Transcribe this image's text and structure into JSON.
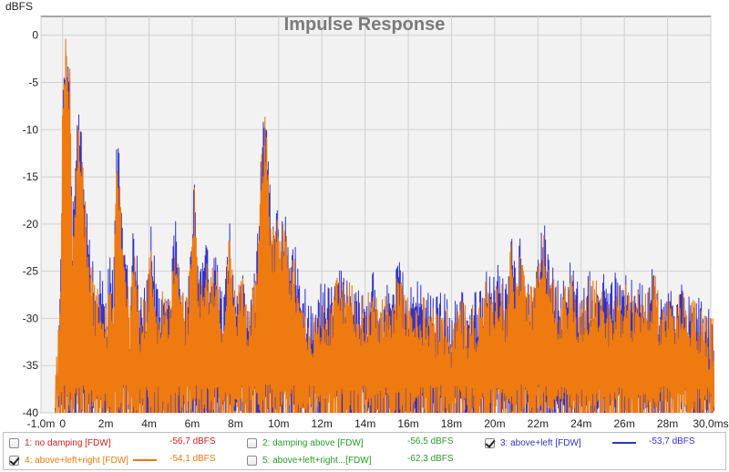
{
  "chart_data": {
    "type": "line",
    "title": "Impulse Response",
    "ylabel": "dBFS",
    "xlabel": "",
    "xlim": [
      -1.0,
      30.0
    ],
    "ylim": [
      -40,
      2
    ],
    "x_unit": "ms",
    "x_ticks": [
      "-1,0m",
      "0",
      "2m",
      "4m",
      "6m",
      "8m",
      "10m",
      "12m",
      "14m",
      "16m",
      "18m",
      "20m",
      "22m",
      "24m",
      "26m",
      "28m",
      "30,0ms"
    ],
    "x_tick_values": [
      -1,
      0,
      2,
      4,
      6,
      8,
      10,
      12,
      14,
      16,
      18,
      20,
      22,
      24,
      26,
      28,
      30
    ],
    "y_ticks": [
      "0",
      "-5",
      "-10",
      "-15",
      "-20",
      "-25",
      "-30",
      "-35",
      "-40"
    ],
    "y_tick_values": [
      0,
      -5,
      -10,
      -15,
      -20,
      -25,
      -30,
      -35,
      -40
    ],
    "grid": true,
    "peak_envelope": {
      "x": [
        -0.35,
        -0.1,
        0.0,
        0.05,
        0.2,
        0.35,
        0.45,
        0.6,
        0.75,
        0.9,
        1.0,
        1.2,
        1.4,
        1.5,
        1.75,
        2.05,
        2.2,
        2.35,
        2.5,
        2.65,
        2.8,
        2.95,
        3.1,
        3.3,
        3.6,
        3.9,
        4.1,
        4.4,
        4.6,
        4.9,
        5.2,
        5.5,
        5.8,
        5.95,
        6.1,
        6.3,
        6.6,
        6.9,
        7.1,
        7.4,
        7.7,
        8.0,
        8.2,
        8.6,
        8.9,
        9.1,
        9.25,
        9.4,
        9.55,
        9.7,
        9.9,
        10.1,
        10.3,
        10.5,
        10.7,
        10.9,
        11.1,
        11.4,
        11.7,
        12.0,
        12.4,
        12.8,
        13.2,
        13.6,
        14.0,
        14.4,
        14.8,
        15.2,
        15.6,
        16.0,
        16.4,
        16.8,
        17.2,
        17.6,
        18.0,
        18.4,
        18.8,
        19.2,
        19.6,
        19.9,
        20.2,
        20.5,
        20.8,
        21.0,
        21.2,
        21.5,
        21.8,
        22.0,
        22.3,
        22.6,
        22.9,
        23.2,
        23.5,
        23.8,
        24.1,
        24.4,
        24.7,
        25.0,
        25.3,
        25.6,
        25.9,
        26.2,
        26.5,
        26.8,
        27.1,
        27.4,
        27.7,
        28.0,
        28.3,
        28.6,
        28.9,
        29.2,
        29.5,
        29.8
      ],
      "blue": [
        -38,
        -25,
        -7,
        -1,
        0,
        -4,
        -19,
        -13,
        -6,
        -10,
        -15,
        -21,
        -24,
        -26,
        -24,
        -27,
        -22,
        -26,
        -11,
        -13,
        -20,
        -23,
        -28,
        -19,
        -28,
        -26,
        -20,
        -27,
        -26,
        -28,
        -19,
        -26,
        -27,
        -21,
        -15,
        -24,
        -22,
        -24,
        -22,
        -28,
        -19,
        -27,
        -23,
        -28,
        -25,
        -17,
        -10,
        -7,
        -14,
        -20,
        -18,
        -21,
        -17,
        -23,
        -21,
        -25,
        -24,
        -29,
        -28,
        -26,
        -27,
        -24,
        -25,
        -26,
        -27,
        -25,
        -27,
        -26,
        -24,
        -27,
        -26,
        -27,
        -28,
        -27,
        -29,
        -27,
        -28,
        -27,
        -25,
        -26,
        -24,
        -27,
        -20,
        -25,
        -21,
        -25,
        -26,
        -22,
        -20,
        -24,
        -26,
        -26,
        -24,
        -26,
        -27,
        -25,
        -25,
        -25,
        -27,
        -25,
        -26,
        -25,
        -27,
        -25,
        -26,
        -24,
        -28,
        -25,
        -27,
        -25,
        -28,
        -27,
        -28,
        -29
      ],
      "orange": [
        -38,
        -25,
        -7,
        -1,
        0,
        -4,
        -20,
        -14,
        -7,
        -11,
        -16,
        -22,
        -25,
        -27,
        -25,
        -28,
        -23,
        -27,
        -12,
        -14,
        -21,
        -24,
        -29,
        -20,
        -29,
        -27,
        -21,
        -28,
        -27,
        -29,
        -20,
        -27,
        -28,
        -22,
        -16,
        -25,
        -23,
        -25,
        -23,
        -29,
        -20,
        -28,
        -24,
        -29,
        -26,
        -18,
        -11,
        -8,
        -15,
        -21,
        -19,
        -22,
        -18,
        -24,
        -22,
        -26,
        -25,
        -30,
        -29,
        -27,
        -28,
        -25,
        -26,
        -27,
        -28,
        -26,
        -28,
        -27,
        -25,
        -28,
        -27,
        -28,
        -29,
        -28,
        -30,
        -28,
        -29,
        -28,
        -26,
        -27,
        -25,
        -28,
        -21,
        -26,
        -22,
        -26,
        -27,
        -23,
        -21,
        -25,
        -27,
        -27,
        -25,
        -27,
        -28,
        -26,
        -26,
        -26,
        -28,
        -26,
        -27,
        -26,
        -28,
        -26,
        -27,
        -25,
        -29,
        -26,
        -28,
        -26,
        -29,
        -28,
        -29,
        -30
      ]
    },
    "series": [
      {
        "name": "1: no damping [FDW]",
        "value_label": "-56,7 dBFS",
        "checked": false,
        "color": "#cc2222"
      },
      {
        "name": "2: damping above [FDW]",
        "value_label": "-56,5 dBFS",
        "checked": false,
        "color": "#2a9a2a"
      },
      {
        "name": "3: above+left [FDW]",
        "value_label": "-53,7 dBFS",
        "checked": true,
        "color": "#3333cc"
      },
      {
        "name": "4: above+left+right [FDW]",
        "value_label": "-54,1 dBFS",
        "checked": true,
        "color": "#ee7a10"
      },
      {
        "name": "5: above+left+right...[FDW]",
        "value_label": "-62,3 dBFS",
        "checked": false,
        "color": "#2a9a2a"
      }
    ]
  },
  "colors": {
    "plot_bg": "#f2f2f2",
    "grid": "#cfcfcf",
    "axis": "#555555"
  }
}
